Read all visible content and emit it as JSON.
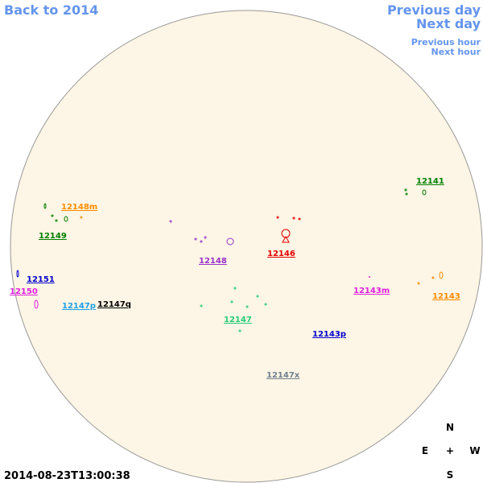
{
  "nav": {
    "back": "Back to 2014",
    "previous_day": "Previous day",
    "next_day": "Next day",
    "previous_hour": "Previous hour",
    "next_hour": "Next hour"
  },
  "timestamp": "2014-08-23T13:00:38",
  "compass": {
    "north": "N",
    "east": "E",
    "center": "+",
    "west": "W",
    "south": "S"
  },
  "regions": [
    {
      "label": "12141",
      "color": "#008000"
    },
    {
      "label": "12148m",
      "color": "#ff8c00"
    },
    {
      "label": "12149",
      "color": "#008000"
    },
    {
      "label": "12146",
      "color": "#e00000"
    },
    {
      "label": "12148",
      "color": "#9932cc"
    },
    {
      "label": "12151",
      "color": "#0000cd"
    },
    {
      "label": "12150",
      "color": "#e020e0"
    },
    {
      "label": "12143m",
      "color": "#e020e0"
    },
    {
      "label": "12143",
      "color": "#ff8c00"
    },
    {
      "label": "12147p",
      "color": "#1ea0e6"
    },
    {
      "label": "12147q",
      "color": "#000000"
    },
    {
      "label": "12147",
      "color": "#22cc77"
    },
    {
      "label": "12143p",
      "color": "#0000cd"
    },
    {
      "label": "12147x",
      "color": "#708090"
    }
  ]
}
